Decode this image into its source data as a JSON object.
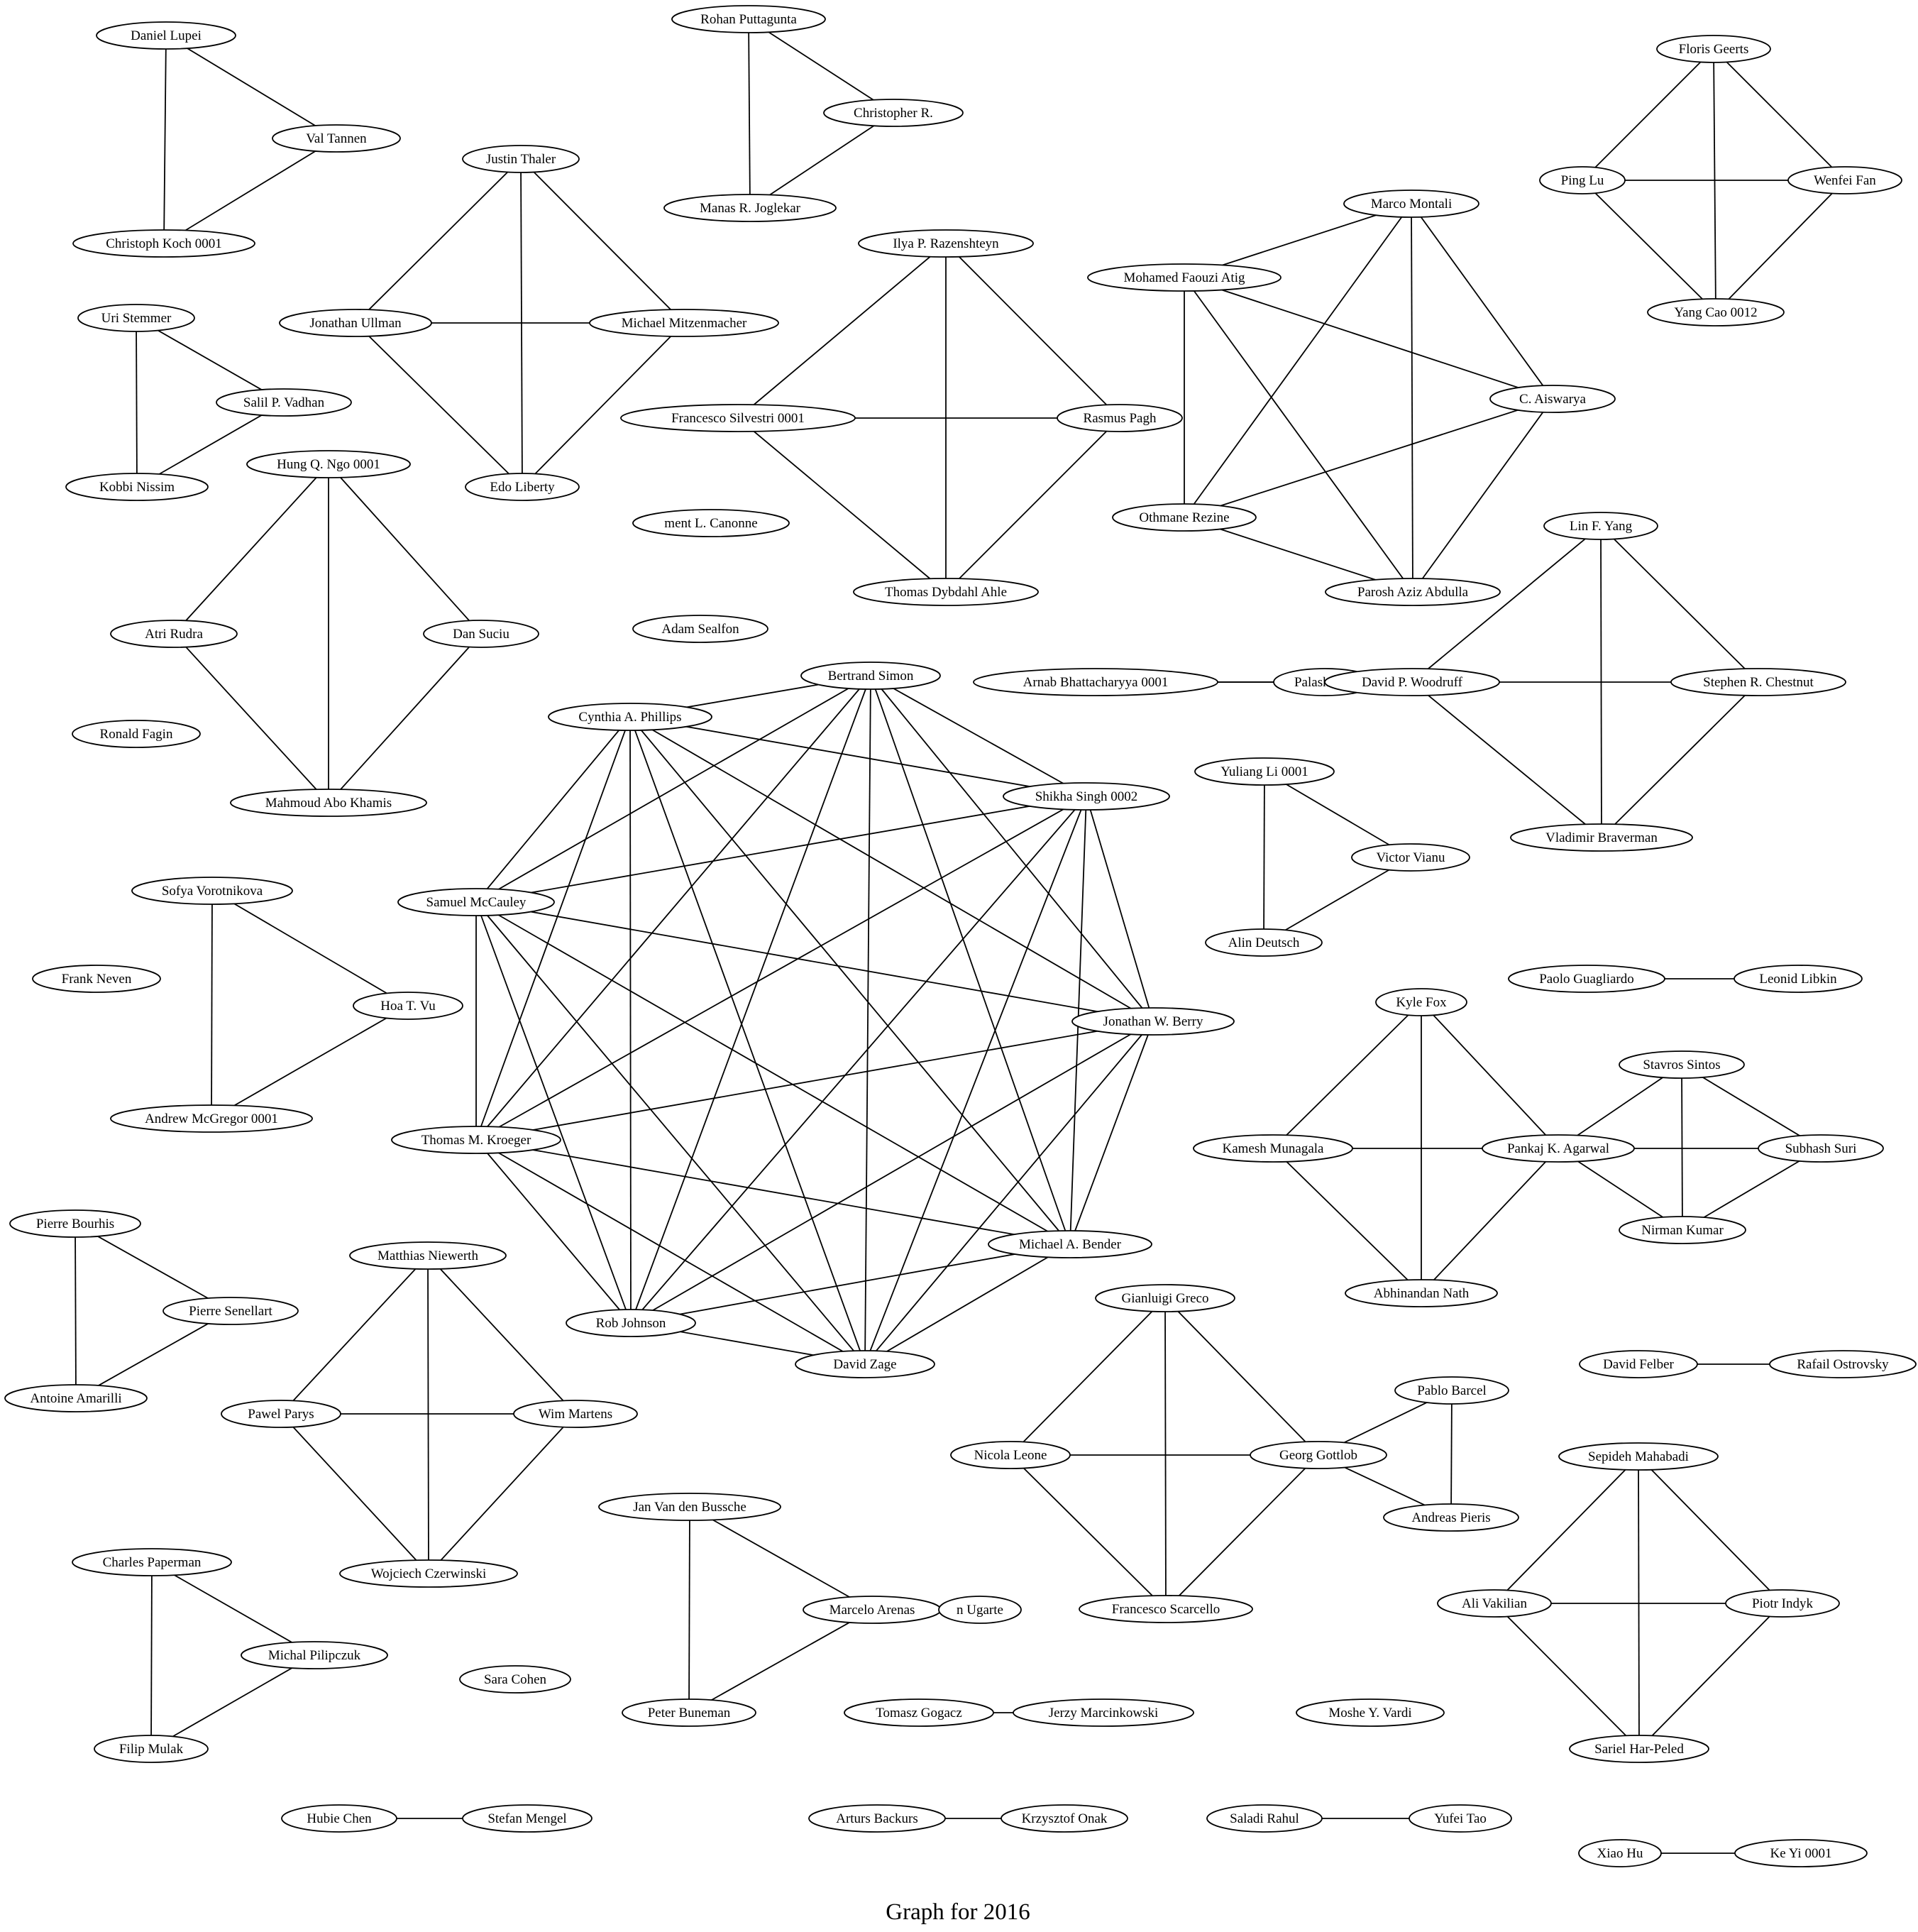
{
  "graph": {
    "title": "Graph for 2016",
    "nodes": [
      {
        "id": "lupei",
        "label": "Daniel Lupei"
      },
      {
        "id": "tannen",
        "label": "Val Tannen"
      },
      {
        "id": "koch",
        "label": "Christoph Koch 0001"
      },
      {
        "id": "puttagunta",
        "label": "Rohan Puttagunta"
      },
      {
        "id": "re",
        "label": "Christopher R."
      },
      {
        "id": "joglekar",
        "label": "Manas R. Joglekar"
      },
      {
        "id": "geerts",
        "label": "Floris Geerts"
      },
      {
        "id": "pinglu",
        "label": "Ping Lu"
      },
      {
        "id": "wenfei",
        "label": "Wenfei Fan"
      },
      {
        "id": "yangcao",
        "label": "Yang Cao 0012"
      },
      {
        "id": "thaler",
        "label": "Justin Thaler"
      },
      {
        "id": "ullman",
        "label": "Jonathan Ullman"
      },
      {
        "id": "mitzenmacher",
        "label": "Michael Mitzenmacher"
      },
      {
        "id": "liberty",
        "label": "Edo Liberty"
      },
      {
        "id": "stemmer",
        "label": "Uri Stemmer"
      },
      {
        "id": "vadhan",
        "label": "Salil P. Vadhan"
      },
      {
        "id": "nissim",
        "label": "Kobbi Nissim"
      },
      {
        "id": "razenshteyn",
        "label": "Ilya P. Razenshteyn"
      },
      {
        "id": "silvestri",
        "label": "Francesco Silvestri 0001"
      },
      {
        "id": "pagh",
        "label": "Rasmus Pagh"
      },
      {
        "id": "ahle",
        "label": "Thomas Dybdahl Ahle"
      },
      {
        "id": "montali",
        "label": "Marco Montali"
      },
      {
        "id": "atig",
        "label": "Mohamed Faouzi Atig"
      },
      {
        "id": "aiswarya",
        "label": "C. Aiswarya"
      },
      {
        "id": "rezine",
        "label": "Othmane Rezine"
      },
      {
        "id": "abdulla",
        "label": "Parosh Aziz Abdulla"
      },
      {
        "id": "ngo",
        "label": "Hung Q. Ngo 0001"
      },
      {
        "id": "rudra",
        "label": "Atri Rudra"
      },
      {
        "id": "suciu",
        "label": "Dan Suciu"
      },
      {
        "id": "khamis",
        "label": "Mahmoud Abo Khamis"
      },
      {
        "id": "canonne",
        "label": "ment L. Canonne"
      },
      {
        "id": "sealfon",
        "label": "Adam Sealfon"
      },
      {
        "id": "fagin",
        "label": "Ronald Fagin"
      },
      {
        "id": "linyang",
        "label": "Lin F. Yang"
      },
      {
        "id": "bhattacharyya",
        "label": "Arnab Bhattacharyya 0001"
      },
      {
        "id": "palashdey",
        "label": "Palash Dey"
      },
      {
        "id": "woodruff",
        "label": "David P. Woodruff"
      },
      {
        "id": "chestnut",
        "label": "Stephen R. Chestnut"
      },
      {
        "id": "braverman",
        "label": "Vladimir Braverman"
      },
      {
        "id": "bsimon",
        "label": "Bertrand Simon"
      },
      {
        "id": "phillips",
        "label": "Cynthia A. Phillips"
      },
      {
        "id": "singh",
        "label": "Shikha Singh 0002"
      },
      {
        "id": "mccauley",
        "label": "Samuel McCauley"
      },
      {
        "id": "berry",
        "label": "Jonathan W. Berry"
      },
      {
        "id": "kroeger",
        "label": "Thomas M. Kroeger"
      },
      {
        "id": "bender",
        "label": "Michael A. Bender"
      },
      {
        "id": "johnson",
        "label": "Rob Johnson"
      },
      {
        "id": "zage",
        "label": "David Zage"
      },
      {
        "id": "yuliang",
        "label": "Yuliang Li 0001"
      },
      {
        "id": "vianu",
        "label": "Victor Vianu"
      },
      {
        "id": "deutsch",
        "label": "Alin Deutsch"
      },
      {
        "id": "guagliardo",
        "label": "Paolo Guagliardo"
      },
      {
        "id": "libkin",
        "label": "Leonid Libkin"
      },
      {
        "id": "vorotnikova",
        "label": "Sofya Vorotnikova"
      },
      {
        "id": "hoavu",
        "label": "Hoa T. Vu"
      },
      {
        "id": "mcgregor",
        "label": "Andrew McGregor 0001"
      },
      {
        "id": "neven",
        "label": "Frank Neven"
      },
      {
        "id": "kylefox",
        "label": "Kyle Fox"
      },
      {
        "id": "munagala",
        "label": "Kamesh Munagala"
      },
      {
        "id": "agarwal",
        "label": "Pankaj K. Agarwal"
      },
      {
        "id": "nath",
        "label": "Abhinandan Nath"
      },
      {
        "id": "sintos",
        "label": "Stavros Sintos"
      },
      {
        "id": "suri",
        "label": "Subhash Suri"
      },
      {
        "id": "kumar",
        "label": "Nirman Kumar"
      },
      {
        "id": "bourhis",
        "label": "Pierre Bourhis"
      },
      {
        "id": "senellart",
        "label": "Pierre Senellart"
      },
      {
        "id": "amarilli",
        "label": "Antoine Amarilli"
      },
      {
        "id": "niewerth",
        "label": "Matthias Niewerth"
      },
      {
        "id": "parys",
        "label": "Pawel Parys"
      },
      {
        "id": "martens",
        "label": "Wim Martens"
      },
      {
        "id": "czerwinski",
        "label": "Wojciech Czerwinski"
      },
      {
        "id": "greco",
        "label": "Gianluigi Greco"
      },
      {
        "id": "leone",
        "label": "Nicola Leone"
      },
      {
        "id": "gottlob",
        "label": "Georg Gottlob"
      },
      {
        "id": "scarcello",
        "label": "Francesco Scarcello"
      },
      {
        "id": "barcel",
        "label": "Pablo Barcel"
      },
      {
        "id": "pieris",
        "label": "Andreas Pieris"
      },
      {
        "id": "felber",
        "label": "David Felber"
      },
      {
        "id": "ostrovsky",
        "label": "Rafail Ostrovsky"
      },
      {
        "id": "vandenbussche",
        "label": "Jan Van den Bussche"
      },
      {
        "id": "arenas",
        "label": "Marcelo Arenas"
      },
      {
        "id": "ugarte",
        "label": "n Ugarte"
      },
      {
        "id": "buneman",
        "label": "Peter Buneman"
      },
      {
        "id": "mahabadi",
        "label": "Sepideh Mahabadi"
      },
      {
        "id": "vakilian",
        "label": "Ali Vakilian"
      },
      {
        "id": "indyk",
        "label": "Piotr Indyk"
      },
      {
        "id": "harpeled",
        "label": "Sariel Har-Peled"
      },
      {
        "id": "paperman",
        "label": "Charles Paperman"
      },
      {
        "id": "pilipczuk",
        "label": "Michal Pilipczuk"
      },
      {
        "id": "mulak",
        "label": "Filip Mulak"
      },
      {
        "id": "saracohen",
        "label": "Sara Cohen"
      },
      {
        "id": "gogacz",
        "label": "Tomasz Gogacz"
      },
      {
        "id": "marcinkowski",
        "label": "Jerzy Marcinkowski"
      },
      {
        "id": "vardi",
        "label": "Moshe Y. Vardi"
      },
      {
        "id": "hubiechen",
        "label": "Hubie Chen"
      },
      {
        "id": "mengel",
        "label": "Stefan Mengel"
      },
      {
        "id": "backurs",
        "label": "Arturs Backurs"
      },
      {
        "id": "onak",
        "label": "Krzysztof Onak"
      },
      {
        "id": "rahul",
        "label": "Saladi Rahul"
      },
      {
        "id": "yufeitao",
        "label": "Yufei Tao"
      },
      {
        "id": "xiaohu",
        "label": "Xiao Hu"
      },
      {
        "id": "keyi",
        "label": "Ke Yi 0001"
      }
    ],
    "edges": [
      [
        "lupei",
        "tannen"
      ],
      [
        "lupei",
        "koch"
      ],
      [
        "tannen",
        "koch"
      ],
      [
        "puttagunta",
        "re"
      ],
      [
        "puttagunta",
        "joglekar"
      ],
      [
        "re",
        "joglekar"
      ],
      [
        "geerts",
        "pinglu"
      ],
      [
        "geerts",
        "wenfei"
      ],
      [
        "geerts",
        "yangcao"
      ],
      [
        "pinglu",
        "wenfei"
      ],
      [
        "pinglu",
        "yangcao"
      ],
      [
        "wenfei",
        "yangcao"
      ],
      [
        "thaler",
        "ullman"
      ],
      [
        "thaler",
        "mitzenmacher"
      ],
      [
        "thaler",
        "liberty"
      ],
      [
        "ullman",
        "mitzenmacher"
      ],
      [
        "ullman",
        "liberty"
      ],
      [
        "mitzenmacher",
        "liberty"
      ],
      [
        "stemmer",
        "vadhan"
      ],
      [
        "stemmer",
        "nissim"
      ],
      [
        "vadhan",
        "nissim"
      ],
      [
        "razenshteyn",
        "silvestri"
      ],
      [
        "razenshteyn",
        "pagh"
      ],
      [
        "razenshteyn",
        "ahle"
      ],
      [
        "silvestri",
        "pagh"
      ],
      [
        "silvestri",
        "ahle"
      ],
      [
        "pagh",
        "ahle"
      ],
      [
        "montali",
        "atig"
      ],
      [
        "montali",
        "aiswarya"
      ],
      [
        "montali",
        "rezine"
      ],
      [
        "montali",
        "abdulla"
      ],
      [
        "atig",
        "aiswarya"
      ],
      [
        "atig",
        "rezine"
      ],
      [
        "atig",
        "abdulla"
      ],
      [
        "aiswarya",
        "rezine"
      ],
      [
        "aiswarya",
        "abdulla"
      ],
      [
        "rezine",
        "abdulla"
      ],
      [
        "ngo",
        "rudra"
      ],
      [
        "ngo",
        "suciu"
      ],
      [
        "ngo",
        "khamis"
      ],
      [
        "rudra",
        "khamis"
      ],
      [
        "suciu",
        "khamis"
      ],
      [
        "linyang",
        "woodruff"
      ],
      [
        "linyang",
        "chestnut"
      ],
      [
        "linyang",
        "braverman"
      ],
      [
        "woodruff",
        "chestnut"
      ],
      [
        "woodruff",
        "braverman"
      ],
      [
        "chestnut",
        "braverman"
      ],
      [
        "bhattacharyya",
        "palashdey"
      ],
      [
        "bhattacharyya",
        "woodruff"
      ],
      [
        "palashdey",
        "woodruff"
      ],
      [
        "bsimon",
        "phillips"
      ],
      [
        "bsimon",
        "singh"
      ],
      [
        "bsimon",
        "mccauley"
      ],
      [
        "bsimon",
        "berry"
      ],
      [
        "bsimon",
        "kroeger"
      ],
      [
        "bsimon",
        "bender"
      ],
      [
        "bsimon",
        "johnson"
      ],
      [
        "bsimon",
        "zage"
      ],
      [
        "phillips",
        "singh"
      ],
      [
        "phillips",
        "mccauley"
      ],
      [
        "phillips",
        "berry"
      ],
      [
        "phillips",
        "kroeger"
      ],
      [
        "phillips",
        "bender"
      ],
      [
        "phillips",
        "johnson"
      ],
      [
        "phillips",
        "zage"
      ],
      [
        "singh",
        "mccauley"
      ],
      [
        "singh",
        "berry"
      ],
      [
        "singh",
        "kroeger"
      ],
      [
        "singh",
        "bender"
      ],
      [
        "singh",
        "johnson"
      ],
      [
        "singh",
        "zage"
      ],
      [
        "mccauley",
        "berry"
      ],
      [
        "mccauley",
        "kroeger"
      ],
      [
        "mccauley",
        "bender"
      ],
      [
        "mccauley",
        "johnson"
      ],
      [
        "mccauley",
        "zage"
      ],
      [
        "berry",
        "kroeger"
      ],
      [
        "berry",
        "bender"
      ],
      [
        "berry",
        "johnson"
      ],
      [
        "berry",
        "zage"
      ],
      [
        "kroeger",
        "bender"
      ],
      [
        "kroeger",
        "johnson"
      ],
      [
        "kroeger",
        "zage"
      ],
      [
        "bender",
        "johnson"
      ],
      [
        "bender",
        "zage"
      ],
      [
        "johnson",
        "zage"
      ],
      [
        "yuliang",
        "vianu"
      ],
      [
        "yuliang",
        "deutsch"
      ],
      [
        "vianu",
        "deutsch"
      ],
      [
        "guagliardo",
        "libkin"
      ],
      [
        "vorotnikova",
        "hoavu"
      ],
      [
        "vorotnikova",
        "mcgregor"
      ],
      [
        "hoavu",
        "mcgregor"
      ],
      [
        "kylefox",
        "munagala"
      ],
      [
        "kylefox",
        "agarwal"
      ],
      [
        "kylefox",
        "nath"
      ],
      [
        "munagala",
        "agarwal"
      ],
      [
        "munagala",
        "nath"
      ],
      [
        "agarwal",
        "nath"
      ],
      [
        "sintos",
        "agarwal"
      ],
      [
        "sintos",
        "suri"
      ],
      [
        "sintos",
        "kumar"
      ],
      [
        "agarwal",
        "suri"
      ],
      [
        "agarwal",
        "kumar"
      ],
      [
        "suri",
        "kumar"
      ],
      [
        "bourhis",
        "senellart"
      ],
      [
        "bourhis",
        "amarilli"
      ],
      [
        "senellart",
        "amarilli"
      ],
      [
        "niewerth",
        "parys"
      ],
      [
        "niewerth",
        "martens"
      ],
      [
        "niewerth",
        "czerwinski"
      ],
      [
        "parys",
        "martens"
      ],
      [
        "parys",
        "czerwinski"
      ],
      [
        "martens",
        "czerwinski"
      ],
      [
        "greco",
        "leone"
      ],
      [
        "greco",
        "gottlob"
      ],
      [
        "greco",
        "scarcello"
      ],
      [
        "leone",
        "gottlob"
      ],
      [
        "leone",
        "scarcello"
      ],
      [
        "gottlob",
        "scarcello"
      ],
      [
        "gottlob",
        "barcel"
      ],
      [
        "gottlob",
        "pieris"
      ],
      [
        "barcel",
        "pieris"
      ],
      [
        "felber",
        "ostrovsky"
      ],
      [
        "vandenbussche",
        "arenas"
      ],
      [
        "vandenbussche",
        "buneman"
      ],
      [
        "arenas",
        "buneman"
      ],
      [
        "arenas",
        "ugarte"
      ],
      [
        "mahabadi",
        "vakilian"
      ],
      [
        "mahabadi",
        "indyk"
      ],
      [
        "mahabadi",
        "harpeled"
      ],
      [
        "vakilian",
        "indyk"
      ],
      [
        "vakilian",
        "harpeled"
      ],
      [
        "indyk",
        "harpeled"
      ],
      [
        "paperman",
        "pilipczuk"
      ],
      [
        "paperman",
        "mulak"
      ],
      [
        "pilipczuk",
        "mulak"
      ],
      [
        "gogacz",
        "marcinkowski"
      ],
      [
        "hubiechen",
        "mengel"
      ],
      [
        "backurs",
        "onak"
      ],
      [
        "rahul",
        "yufeitao"
      ],
      [
        "xiaohu",
        "keyi"
      ]
    ]
  }
}
